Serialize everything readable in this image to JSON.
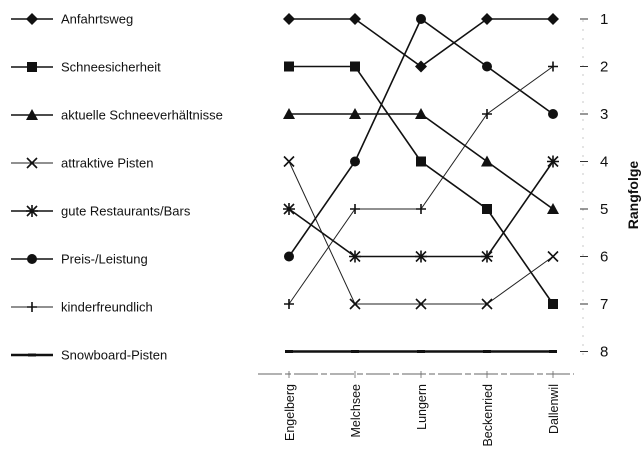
{
  "chart_data": {
    "type": "line",
    "categories": [
      "Engelberg",
      "Melchsee",
      "Lungern",
      "Beckenried",
      "Dallenwil"
    ],
    "ylabel": "Rangfolge",
    "ylim": [
      1,
      8
    ],
    "y_ticks": [
      "1",
      "2",
      "3",
      "4",
      "5",
      "6",
      "7",
      "8"
    ],
    "y_inverted": true,
    "legend_placement": "left",
    "grid": false,
    "series": [
      {
        "name": "Anfahrtsweg",
        "marker": "diamond",
        "values": [
          1,
          1,
          2,
          1,
          1
        ]
      },
      {
        "name": "Schneesicherheit",
        "marker": "square",
        "values": [
          2,
          2,
          4,
          5,
          7
        ]
      },
      {
        "name": "aktuelle Schneeverhältnisse",
        "marker": "triangle",
        "values": [
          3,
          3,
          3,
          4,
          5
        ]
      },
      {
        "name": "attraktive Pisten",
        "marker": "x",
        "values": [
          4,
          7,
          7,
          7,
          6
        ]
      },
      {
        "name": "gute Restaurants/Bars",
        "marker": "star",
        "values": [
          5,
          6,
          6,
          6,
          4
        ]
      },
      {
        "name": "Preis-/Leistung",
        "marker": "circle",
        "values": [
          6,
          4,
          1,
          2,
          3
        ]
      },
      {
        "name": "kinderfreundlich",
        "marker": "plus",
        "values": [
          7,
          5,
          5,
          3,
          2
        ]
      },
      {
        "name": "Snowboard-Pisten",
        "marker": "dash",
        "values": [
          8,
          8,
          8,
          8,
          8
        ]
      }
    ]
  }
}
